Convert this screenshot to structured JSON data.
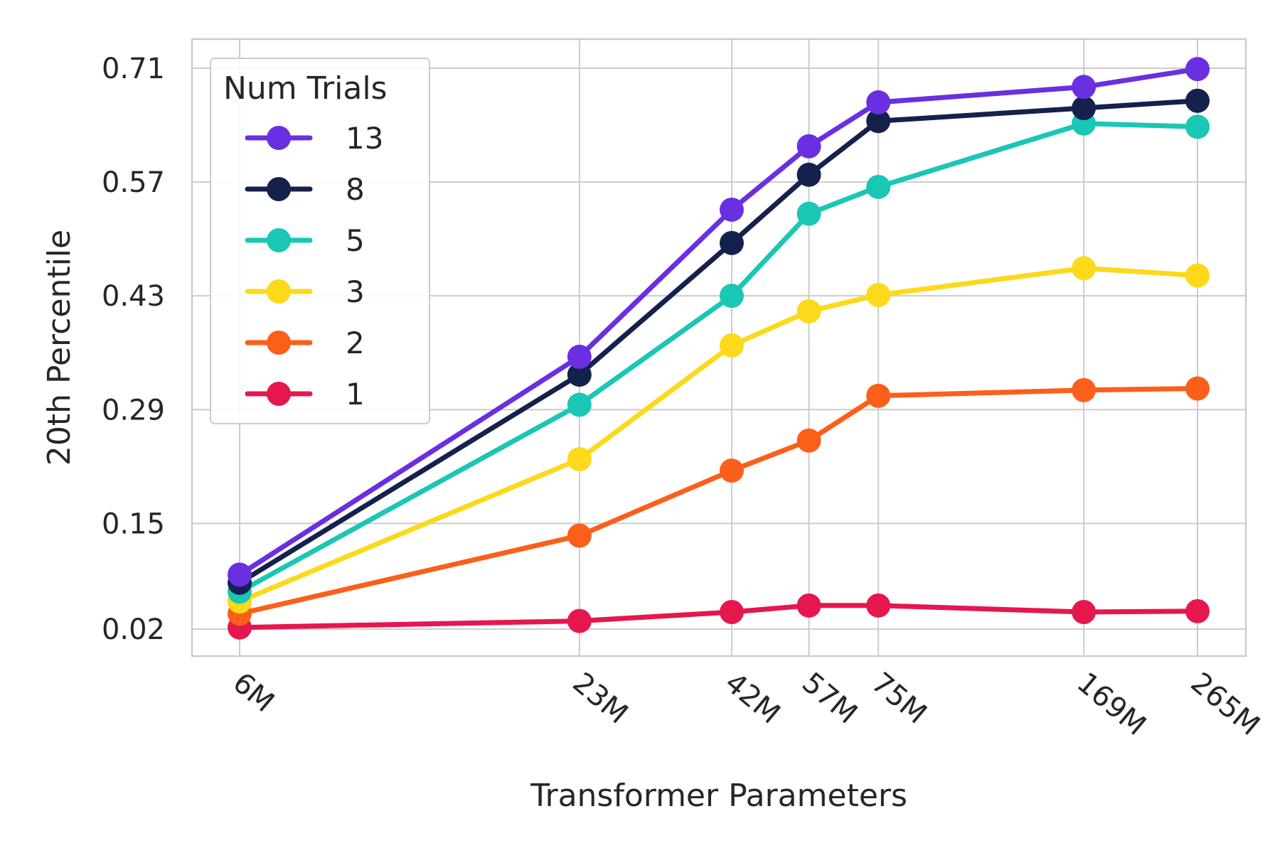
{
  "chart_data": {
    "type": "line",
    "xlabel": "Transformer Parameters",
    "ylabel": "20th Percentile",
    "x_scale": "log",
    "x": [
      6,
      23,
      42,
      57,
      75,
      169,
      265
    ],
    "x_tick_labels": [
      "6M",
      "23M",
      "42M",
      "57M",
      "75M",
      "169M",
      "265M"
    ],
    "y_ticks": [
      0.02,
      0.15,
      0.29,
      0.43,
      0.57,
      0.71
    ],
    "y_tick_labels": [
      "0.02",
      "0.15",
      "0.29",
      "0.43",
      "0.57",
      "0.71"
    ],
    "grid": true,
    "legend": {
      "title": "Num Trials",
      "placement": "upper-left"
    },
    "series": [
      {
        "name": "13",
        "color": "#6a2fe0",
        "values": [
          0.087,
          0.355,
          0.536,
          0.614,
          0.668,
          0.687,
          0.709
        ]
      },
      {
        "name": "8",
        "color": "#14214d",
        "values": [
          0.077,
          0.333,
          0.495,
          0.579,
          0.645,
          0.661,
          0.67
        ]
      },
      {
        "name": "5",
        "color": "#1ac6b4",
        "values": [
          0.066,
          0.296,
          0.43,
          0.531,
          0.564,
          0.642,
          0.638
        ]
      },
      {
        "name": "3",
        "color": "#fcd91b",
        "values": [
          0.054,
          0.229,
          0.369,
          0.411,
          0.431,
          0.464,
          0.455
        ]
      },
      {
        "name": "2",
        "color": "#fc5f1a",
        "values": [
          0.039,
          0.135,
          0.215,
          0.252,
          0.307,
          0.314,
          0.316
        ]
      },
      {
        "name": "1",
        "color": "#e5174e",
        "values": [
          0.022,
          0.03,
          0.041,
          0.049,
          0.049,
          0.041,
          0.042
        ]
      }
    ]
  }
}
